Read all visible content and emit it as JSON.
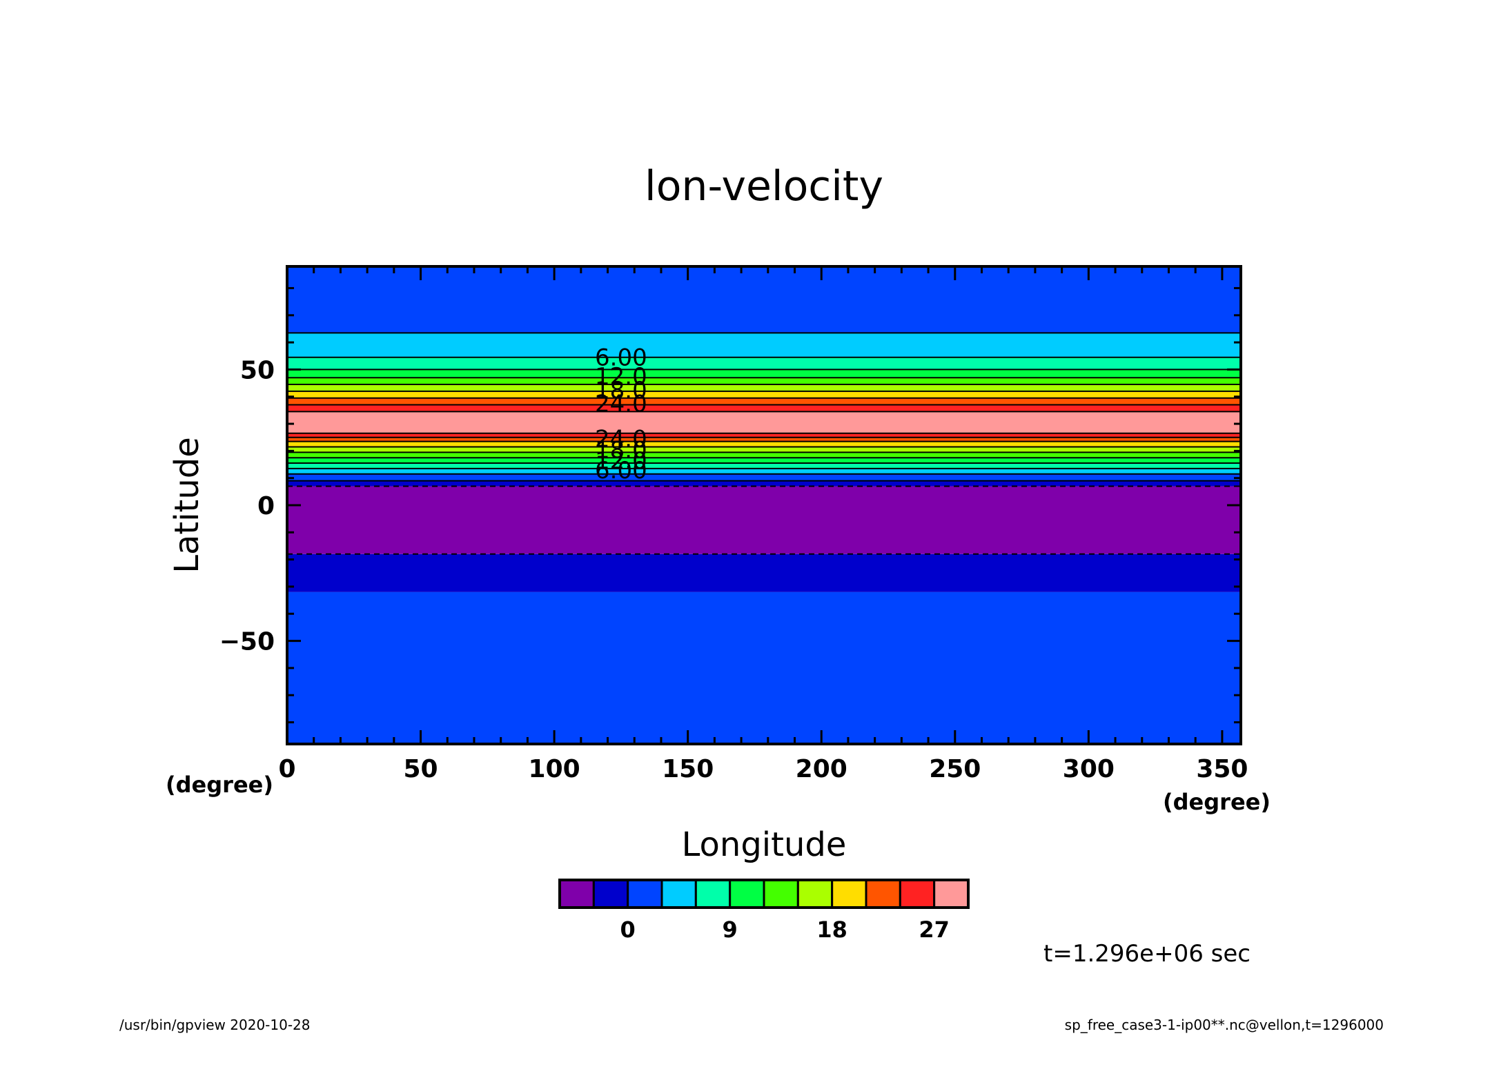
{
  "chart_data": {
    "type": "heatmap",
    "title": "lon-velocity",
    "xlabel": "Longitude",
    "ylabel": "Latitude",
    "x_unit": "(degree)",
    "y_unit": "(degree)",
    "xlim": [
      0,
      357
    ],
    "ylim": [
      -88,
      88
    ],
    "x_ticks": [
      0,
      50,
      100,
      150,
      200,
      250,
      300,
      350
    ],
    "y_ticks": [
      -50,
      0,
      50
    ],
    "x_tick_labels": [
      "0",
      "50",
      "100",
      "150",
      "200",
      "250",
      "300",
      "350"
    ],
    "y_tick_labels": [
      "−50",
      "0",
      "50"
    ],
    "bands": [
      {
        "lat_min": -88,
        "lat_max": -32,
        "color": "#0044ff"
      },
      {
        "lat_min": -32,
        "lat_max": -18,
        "color": "#0000cc"
      },
      {
        "lat_min": -18,
        "lat_max": 7,
        "color": "#7f00aa"
      },
      {
        "lat_min": 7,
        "lat_max": 9,
        "color": "#0000cc"
      },
      {
        "lat_min": 9,
        "lat_max": 11.5,
        "color": "#0044ff"
      },
      {
        "lat_min": 11.5,
        "lat_max": 13.5,
        "color": "#00ccff"
      },
      {
        "lat_min": 13.5,
        "lat_max": 15.5,
        "color": "#00ffaa"
      },
      {
        "lat_min": 15.5,
        "lat_max": 17.5,
        "color": "#00ff44"
      },
      {
        "lat_min": 17.5,
        "lat_max": 19.5,
        "color": "#44ff00"
      },
      {
        "lat_min": 19.5,
        "lat_max": 21.5,
        "color": "#aaff00"
      },
      {
        "lat_min": 21.5,
        "lat_max": 23.5,
        "color": "#ffdd00"
      },
      {
        "lat_min": 23.5,
        "lat_max": 25,
        "color": "#ff5500"
      },
      {
        "lat_min": 25,
        "lat_max": 26.5,
        "color": "#ff2222"
      },
      {
        "lat_min": 26.5,
        "lat_max": 34.5,
        "color": "#ff9999"
      },
      {
        "lat_min": 34.5,
        "lat_max": 37,
        "color": "#ff2222"
      },
      {
        "lat_min": 37,
        "lat_max": 39.5,
        "color": "#ff5500"
      },
      {
        "lat_min": 39.5,
        "lat_max": 42,
        "color": "#ffdd00"
      },
      {
        "lat_min": 42,
        "lat_max": 44.5,
        "color": "#aaff00"
      },
      {
        "lat_min": 44.5,
        "lat_max": 47,
        "color": "#44ff00"
      },
      {
        "lat_min": 47,
        "lat_max": 50,
        "color": "#00ff44"
      },
      {
        "lat_min": 50,
        "lat_max": 54.5,
        "color": "#00ffaa"
      },
      {
        "lat_min": 54.5,
        "lat_max": 63.5,
        "color": "#00ccff"
      },
      {
        "lat_min": 63.5,
        "lat_max": 88,
        "color": "#0044ff"
      }
    ],
    "contours": [
      {
        "lat": -18,
        "style": "dashed"
      },
      {
        "lat": 7,
        "style": "dashed"
      },
      {
        "lat": 9,
        "style": "solid"
      },
      {
        "lat": 11.5,
        "style": "solid"
      },
      {
        "lat": 13.5,
        "style": "solid"
      },
      {
        "lat": 15.5,
        "style": "solid"
      },
      {
        "lat": 17.5,
        "style": "solid"
      },
      {
        "lat": 19.5,
        "style": "solid"
      },
      {
        "lat": 21.5,
        "style": "solid"
      },
      {
        "lat": 23.5,
        "style": "solid"
      },
      {
        "lat": 25,
        "style": "solid"
      },
      {
        "lat": 26.5,
        "style": "solid"
      },
      {
        "lat": 34.5,
        "style": "solid"
      },
      {
        "lat": 37,
        "style": "solid"
      },
      {
        "lat": 39.5,
        "style": "solid"
      },
      {
        "lat": 42,
        "style": "solid"
      },
      {
        "lat": 44.5,
        "style": "solid"
      },
      {
        "lat": 47,
        "style": "solid"
      },
      {
        "lat": 50,
        "style": "solid"
      },
      {
        "lat": 54.5,
        "style": "solid"
      },
      {
        "lat": 63.5,
        "style": "solid"
      }
    ],
    "contour_labels": [
      {
        "text": "6.00",
        "lat": 54.5,
        "lon": 125
      },
      {
        "text": "12.0",
        "lat": 47.5,
        "lon": 125
      },
      {
        "text": "18.0",
        "lat": 42.5,
        "lon": 125
      },
      {
        "text": "24.0",
        "lat": 37.5,
        "lon": 125
      },
      {
        "text": "24.0",
        "lat": 24.5,
        "lon": 125
      },
      {
        "text": "18.0",
        "lat": 20.5,
        "lon": 125
      },
      {
        "text": "12.0",
        "lat": 16.5,
        "lon": 125
      },
      {
        "text": "6.00",
        "lat": 13.0,
        "lon": 125
      }
    ],
    "colorbar": {
      "colors": [
        "#7f00aa",
        "#0000cc",
        "#0044ff",
        "#00ccff",
        "#00ffaa",
        "#00ff44",
        "#44ff00",
        "#aaff00",
        "#ffdd00",
        "#ff5500",
        "#ff2222",
        "#ff9999"
      ],
      "labels": [
        {
          "text": "0",
          "boundary": 2
        },
        {
          "text": "9",
          "boundary": 5
        },
        {
          "text": "18",
          "boundary": 8
        },
        {
          "text": "27",
          "boundary": 11
        }
      ]
    },
    "grid": false
  },
  "annotations": {
    "time": "t=1.296e+06 sec",
    "footer_left": "/usr/bin/gpview   2020-10-28",
    "footer_right": "sp_free_case3-1-ip00**.nc@vellon,t=1296000"
  }
}
